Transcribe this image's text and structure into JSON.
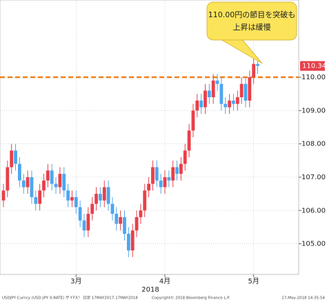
{
  "chart_data": {
    "type": "candlestick",
    "annotation": [
      "110.00円の節目を突破も",
      "上昇は緩慢"
    ],
    "open": [
      106.3,
      106.6,
      107.3,
      107.8,
      107.4,
      106.9,
      106.7,
      107.0,
      106.4,
      106.2,
      106.6,
      106.9,
      107.2,
      106.8,
      106.7,
      107.1,
      106.6,
      106.3,
      106.4,
      106.1,
      105.7,
      105.4,
      105.9,
      106.2,
      106.5,
      106.3,
      106.7,
      106.2,
      105.9,
      105.6,
      105.8,
      105.3,
      104.8,
      105.4,
      105.8,
      106.0,
      106.6,
      106.8,
      107.3,
      106.9,
      106.7,
      107.0,
      106.9,
      107.3,
      107.1,
      107.4,
      107.8,
      108.4,
      109.0,
      109.3,
      109.1,
      109.6,
      109.4,
      109.9,
      109.8,
      109.2,
      109.1,
      109.3,
      109.2,
      109.4,
      109.8,
      109.3,
      110.0,
      110.4
    ],
    "high": [
      106.8,
      107.5,
      108.0,
      108.0,
      107.6,
      107.1,
      107.2,
      107.2,
      106.6,
      106.8,
      107.1,
      107.4,
      107.4,
      107.0,
      107.3,
      107.3,
      106.8,
      106.6,
      106.6,
      106.3,
      105.9,
      106.1,
      106.4,
      106.7,
      106.7,
      106.9,
      106.9,
      106.4,
      106.1,
      106.0,
      106.0,
      105.5,
      105.6,
      106.0,
      106.2,
      106.8,
      107.0,
      107.5,
      107.5,
      107.1,
      107.2,
      107.2,
      107.5,
      107.5,
      107.6,
      108.0,
      108.6,
      109.2,
      109.5,
      109.5,
      109.8,
      109.8,
      110.1,
      110.1,
      110.0,
      109.4,
      109.5,
      109.5,
      109.6,
      110.0,
      110.0,
      110.2,
      110.6,
      110.6
    ],
    "low": [
      106.1,
      106.4,
      107.1,
      107.2,
      106.7,
      106.5,
      106.5,
      106.2,
      106.0,
      106.0,
      106.4,
      106.7,
      106.6,
      106.5,
      106.5,
      106.4,
      106.1,
      106.1,
      105.9,
      105.5,
      105.2,
      105.2,
      105.7,
      106.0,
      106.1,
      106.1,
      106.0,
      105.7,
      105.4,
      105.4,
      105.1,
      104.6,
      104.6,
      105.2,
      105.6,
      105.8,
      106.4,
      106.6,
      106.7,
      106.5,
      106.5,
      106.7,
      106.7,
      106.9,
      106.9,
      107.2,
      107.6,
      108.2,
      108.8,
      108.9,
      108.9,
      109.2,
      109.2,
      109.6,
      109.0,
      108.9,
      108.9,
      109.0,
      109.0,
      109.2,
      109.1,
      109.1,
      109.8,
      110.1
    ],
    "close": [
      106.6,
      107.3,
      107.8,
      107.4,
      106.9,
      106.7,
      107.0,
      106.4,
      106.2,
      106.6,
      106.9,
      107.2,
      106.8,
      106.7,
      107.1,
      106.6,
      106.3,
      106.4,
      106.1,
      105.7,
      105.4,
      105.9,
      106.2,
      106.5,
      106.3,
      106.7,
      106.2,
      105.9,
      105.6,
      105.8,
      105.3,
      104.8,
      105.4,
      105.8,
      106.0,
      106.6,
      106.8,
      107.3,
      106.9,
      106.7,
      107.0,
      106.9,
      107.3,
      107.1,
      107.4,
      107.8,
      108.4,
      109.0,
      109.3,
      109.1,
      109.6,
      109.4,
      109.9,
      109.8,
      109.2,
      109.1,
      109.3,
      109.2,
      109.4,
      109.8,
      109.3,
      110.0,
      110.4,
      110.34
    ],
    "up_color": "#e8404a",
    "down_color": "#4ea6ee",
    "ylim": [
      104.08,
      112.32
    ],
    "yticks": [
      {
        "value": 105,
        "label": "105.00"
      },
      {
        "value": 106,
        "label": "106.00"
      },
      {
        "value": 107,
        "label": "107.00"
      },
      {
        "value": 108,
        "label": "108.00"
      },
      {
        "value": 109,
        "label": "109.00"
      },
      {
        "value": 110,
        "label": "110.00"
      }
    ],
    "xticks": [
      {
        "value": 18,
        "label": "3月"
      },
      {
        "value": 40,
        "label": "4月"
      },
      {
        "value": 62,
        "label": "5月"
      }
    ],
    "xlabel": "2018",
    "reference_line": 110,
    "reference_color": "#f07f1a",
    "grid": true,
    "footer": [
      "USDJPY Curncy (USD-JPY X-RATE) ザイFX！ 日足 17MAY2017-17MAY2018",
      "Copyright© 2018 Bloomberg Finance L.P.",
      "17-May-2018 14:35:54"
    ]
  }
}
